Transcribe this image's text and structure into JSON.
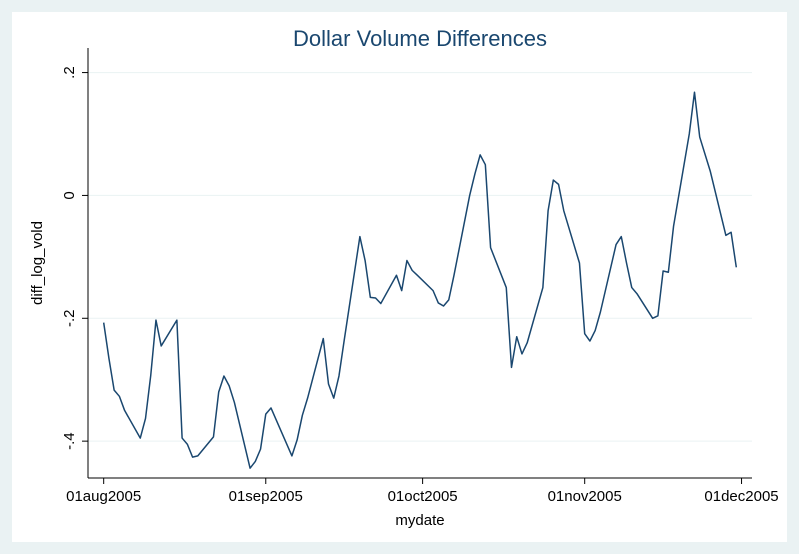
{
  "chart_data": {
    "type": "line",
    "title": "Dollar Volume Differences",
    "x_label": "mydate",
    "y_label": "diff_log_vold",
    "color": "#1a476f",
    "grid": true,
    "x": [
      "2005-08-01",
      "2005-08-02",
      "2005-08-03",
      "2005-08-04",
      "2005-08-05",
      "2005-08-08",
      "2005-08-09",
      "2005-08-10",
      "2005-08-11",
      "2005-08-12",
      "2005-08-15",
      "2005-08-16",
      "2005-08-17",
      "2005-08-18",
      "2005-08-19",
      "2005-08-22",
      "2005-08-23",
      "2005-08-24",
      "2005-08-25",
      "2005-08-26",
      "2005-08-29",
      "2005-08-30",
      "2005-08-31",
      "2005-09-01",
      "2005-09-02",
      "2005-09-06",
      "2005-09-07",
      "2005-09-08",
      "2005-09-09",
      "2005-09-12",
      "2005-09-13",
      "2005-09-14",
      "2005-09-15",
      "2005-09-16",
      "2005-09-19",
      "2005-09-20",
      "2005-09-21",
      "2005-09-22",
      "2005-09-23",
      "2005-09-26",
      "2005-09-27",
      "2005-09-28",
      "2005-09-29",
      "2005-09-30",
      "2005-10-03",
      "2005-10-04",
      "2005-10-05",
      "2005-10-06",
      "2005-10-07",
      "2005-10-10",
      "2005-10-11",
      "2005-10-12",
      "2005-10-13",
      "2005-10-14",
      "2005-10-17",
      "2005-10-18",
      "2005-10-19",
      "2005-10-20",
      "2005-10-21",
      "2005-10-24",
      "2005-10-25",
      "2005-10-26",
      "2005-10-27",
      "2005-10-28",
      "2005-10-31",
      "2005-11-01",
      "2005-11-02",
      "2005-11-03",
      "2005-11-04",
      "2005-11-07",
      "2005-11-08",
      "2005-11-09",
      "2005-11-10",
      "2005-11-11",
      "2005-11-14",
      "2005-11-15",
      "2005-11-16",
      "2005-11-17",
      "2005-11-18",
      "2005-11-21",
      "2005-11-22",
      "2005-11-23",
      "2005-11-25",
      "2005-11-28",
      "2005-11-29",
      "2005-11-30"
    ],
    "values": [
      -0.207,
      -0.265,
      -0.317,
      -0.327,
      -0.35,
      -0.395,
      -0.363,
      -0.293,
      -0.203,
      -0.245,
      -0.203,
      -0.395,
      -0.405,
      -0.426,
      -0.424,
      -0.393,
      -0.32,
      -0.294,
      -0.31,
      -0.337,
      -0.444,
      -0.433,
      -0.413,
      -0.356,
      -0.346,
      -0.424,
      -0.398,
      -0.358,
      -0.33,
      -0.233,
      -0.307,
      -0.33,
      -0.294,
      -0.236,
      -0.067,
      -0.106,
      -0.166,
      -0.167,
      -0.176,
      -0.13,
      -0.155,
      -0.106,
      -0.122,
      -0.13,
      -0.155,
      -0.175,
      -0.18,
      -0.17,
      -0.13,
      0.0,
      0.035,
      0.066,
      0.05,
      -0.085,
      -0.15,
      -0.28,
      -0.23,
      -0.258,
      -0.24,
      -0.15,
      -0.025,
      0.025,
      0.018,
      -0.025,
      -0.11,
      -0.225,
      -0.237,
      -0.22,
      -0.19,
      -0.08,
      -0.067,
      -0.11,
      -0.15,
      -0.16,
      -0.2,
      -0.196,
      -0.123,
      -0.125,
      -0.05,
      0.1,
      0.168,
      0.095,
      0.04,
      -0.065,
      -0.06,
      -0.117
    ],
    "xlim": [
      "2005-07-29",
      "2005-12-03"
    ],
    "xticks": [
      {
        "value": "2005-08-01",
        "label": "01aug2005"
      },
      {
        "value": "2005-09-01",
        "label": "01sep2005"
      },
      {
        "value": "2005-10-01",
        "label": "01oct2005"
      },
      {
        "value": "2005-11-01",
        "label": "01nov2005"
      },
      {
        "value": "2005-12-01",
        "label": "01dec2005"
      }
    ],
    "ylim": [
      -0.46,
      0.24
    ],
    "yticks": [
      {
        "value": -0.4,
        "label": "-.4"
      },
      {
        "value": -0.2,
        "label": "-.2"
      },
      0,
      {
        "value": 0.2,
        "label": ".2"
      }
    ]
  }
}
